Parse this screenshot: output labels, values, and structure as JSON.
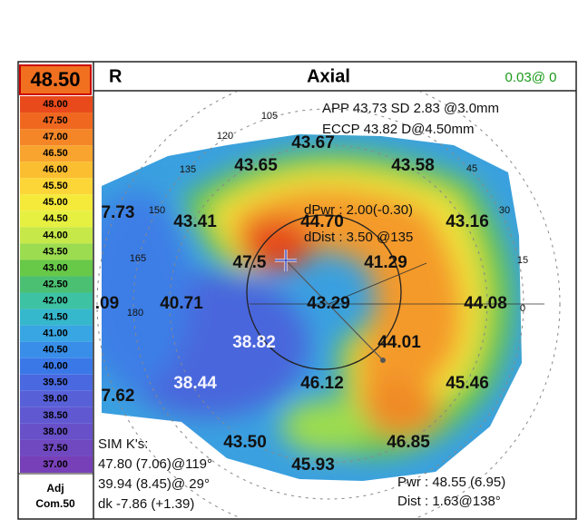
{
  "scale": {
    "current": "48.50",
    "levels": [
      {
        "label": "48.00",
        "color": "#e84a1c"
      },
      {
        "label": "47.50",
        "color": "#f06820"
      },
      {
        "label": "47.00",
        "color": "#f48628"
      },
      {
        "label": "46.50",
        "color": "#f8a42e"
      },
      {
        "label": "46.00",
        "color": "#fbbe30"
      },
      {
        "label": "45.50",
        "color": "#fbd636"
      },
      {
        "label": "45.00",
        "color": "#f5ea3a"
      },
      {
        "label": "44.50",
        "color": "#e6f040"
      },
      {
        "label": "44.00",
        "color": "#c6e848"
      },
      {
        "label": "43.50",
        "color": "#9cdc50"
      },
      {
        "label": "43.00",
        "color": "#68c848"
      },
      {
        "label": "42.50",
        "color": "#4cc072"
      },
      {
        "label": "42.00",
        "color": "#3ec2a4"
      },
      {
        "label": "41.50",
        "color": "#36b8cc"
      },
      {
        "label": "41.00",
        "color": "#38a6e2"
      },
      {
        "label": "40.50",
        "color": "#388ee8"
      },
      {
        "label": "40.00",
        "color": "#3a78e8"
      },
      {
        "label": "39.50",
        "color": "#4a68e0"
      },
      {
        "label": "39.00",
        "color": "#5860d8"
      },
      {
        "label": "38.50",
        "color": "#6058d0"
      },
      {
        "label": "38.00",
        "color": "#6850c8"
      },
      {
        "label": "37.50",
        "color": "#7048c0"
      },
      {
        "label": "37.00",
        "color": "#7840b8"
      }
    ],
    "footer": [
      "Adj",
      "Com.50"
    ]
  },
  "header": {
    "eye": "R",
    "title": "Axial",
    "status": "0.03@  0"
  },
  "map": {
    "values": [
      "43.67",
      "43.65",
      "43.58",
      "7.73",
      "43.41",
      "44.70",
      "43.16",
      "47.5",
      "41.29",
      ".09",
      "40.71",
      "43.29",
      "44.08",
      "38.82",
      "44.01",
      "7.62",
      "38.44",
      "46.12",
      "45.46",
      "43.50",
      "46.85",
      "45.93"
    ],
    "angles": [
      "105",
      "120",
      "135",
      "150",
      "165",
      "180",
      "45",
      "30",
      "15",
      "0"
    ],
    "info": [
      "APP 43.73 SD 2.83  @3.0mm",
      "ECCP 43.82 D@4.50mm",
      "dPwr : 2.00(-0.30)",
      "dDist : 3.50 @135"
    ],
    "simk": [
      "SIM K's:",
      "47.80 (7.06)@119°",
      "39.94 (8.45)@ 29°",
      "dk -7.86 (+1.39)"
    ],
    "pwr": [
      "Pwr :  48.55 (6.95)",
      "Dist :  1.63@138°"
    ]
  }
}
